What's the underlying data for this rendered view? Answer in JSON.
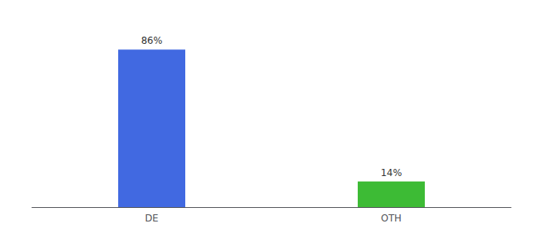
{
  "chart_data": {
    "type": "bar",
    "categories": [
      "DE",
      "OTH"
    ],
    "values": [
      86,
      14
    ],
    "value_labels": [
      "86%",
      "14%"
    ],
    "data_labels": true,
    "colors": [
      "#4169e1",
      "#3dbb35"
    ],
    "ylim": [
      0,
      100
    ],
    "grid": false,
    "tick_labels": "x"
  }
}
